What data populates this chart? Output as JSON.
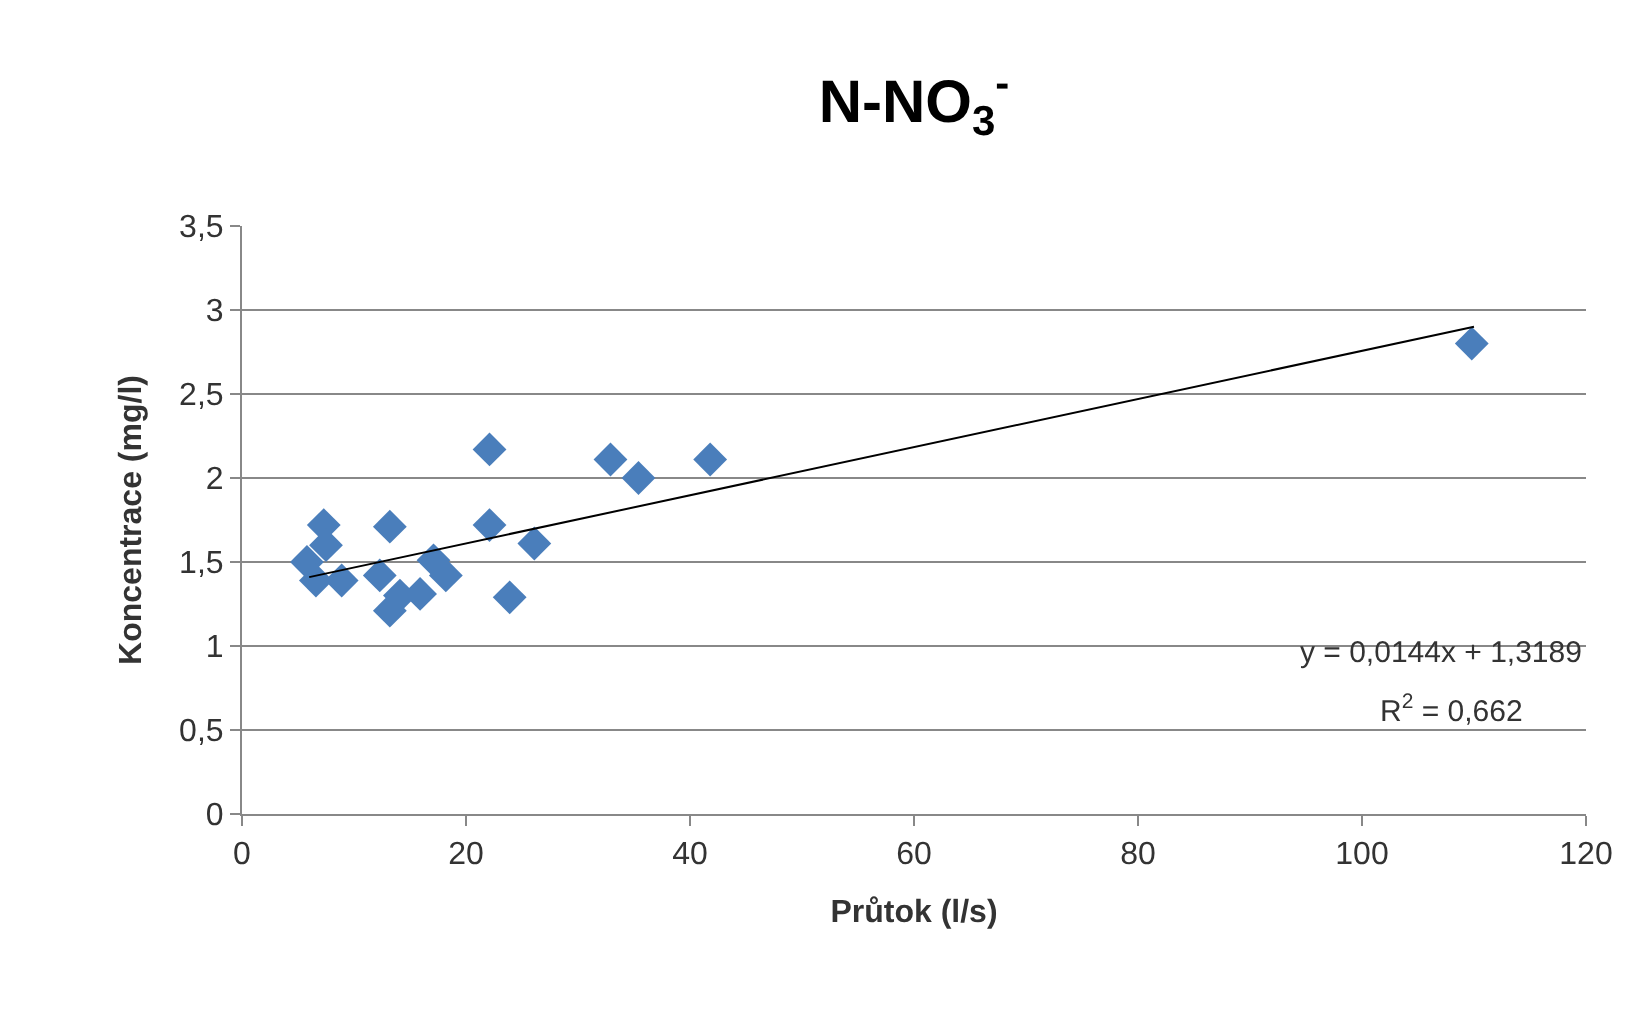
{
  "chart_data": {
    "type": "scatter",
    "title": "N-NO$_{3}$$^{-}$",
    "xlabel": "Průtok (l/s)",
    "ylabel": "Koncentrace (mg/l)",
    "series": [
      {
        "color": "#4a7ebb",
        "marker": "diamond",
        "x": [
          5.8,
          6.6,
          7.3,
          7.5,
          8.9,
          12.3,
          13.2,
          13.2,
          14.1,
          15.9,
          17.1,
          18.2,
          22.1,
          22.1,
          23.9,
          25.7,
          26.1,
          32.9,
          35.4,
          41.8,
          109.8
        ],
        "values": [
          1.5,
          1.39,
          1.72,
          1.6,
          1.39,
          1.42,
          1.71,
          1.21,
          1.3,
          1.31,
          1.51,
          1.42,
          2.17,
          1.72,
          1.29,
          null,
          1.61,
          2.11,
          2.0,
          2.11,
          2.8
        ]
      },
      {
        "type": "line",
        "color": "#000000",
        "line_style": "solid",
        "marker": "none",
        "x": [
          6,
          110
        ],
        "values": [
          1.41,
          2.9
        ]
      }
    ],
    "xlim": [
      0,
      120
    ],
    "xticks": [
      0,
      20,
      40,
      60,
      80,
      100,
      120
    ],
    "ylim": [
      0,
      3.5
    ],
    "yticks": [
      0,
      {
        "value": 0.5,
        "label": "0,5"
      },
      1,
      {
        "value": 1.5,
        "label": "1,5"
      },
      2,
      {
        "value": 2.5,
        "label": "2,5"
      },
      3,
      {
        "value": 3.5,
        "label": "3,5"
      }
    ],
    "grid": "y",
    "legend": false,
    "annotations": [
      "y = 0,0144x + 1,3189",
      "R$^{2}$ = 0,662"
    ]
  }
}
